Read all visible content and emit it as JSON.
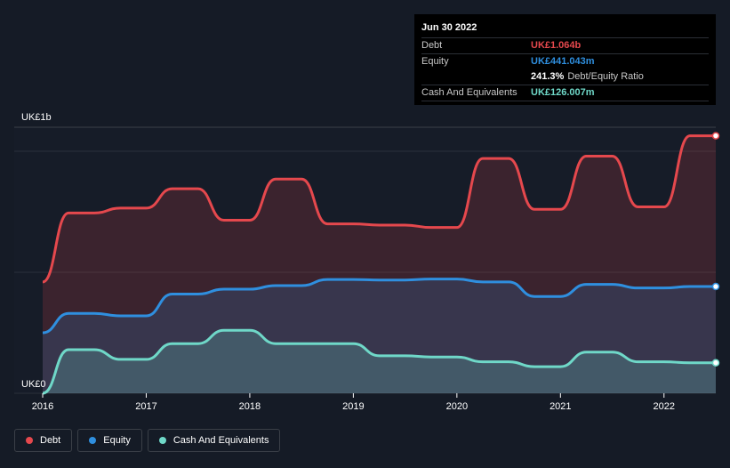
{
  "tooltip": {
    "date": "Jun 30 2022",
    "debt_label": "Debt",
    "debt_value": "UK£1.064b",
    "equity_label": "Equity",
    "equity_value": "UK£441.043m",
    "ratio_value": "241.3%",
    "ratio_label": "Debt/Equity Ratio",
    "cash_label": "Cash And Equivalents",
    "cash_value": "UK£126.007m"
  },
  "legend": [
    {
      "label": "Debt",
      "color": "#e5484d"
    },
    {
      "label": "Equity",
      "color": "#2f8fdf"
    },
    {
      "label": "Cash And Equivalents",
      "color": "#6fd8c8"
    }
  ],
  "chart_data": {
    "type": "area",
    "y_top_label": "UK£1b",
    "y_bottom_label": "UK£0",
    "ylim": [
      0,
      1.1
    ],
    "xlim": [
      2016.0,
      2022.5
    ],
    "x_ticks": [
      "2016",
      "2017",
      "2018",
      "2019",
      "2020",
      "2021",
      "2022"
    ],
    "series": [
      {
        "name": "Debt",
        "color": "#e5484d",
        "fill": "rgba(229,72,77,0.18)",
        "points": [
          [
            2016.0,
            0.46
          ],
          [
            2016.25,
            0.745
          ],
          [
            2016.5,
            0.745
          ],
          [
            2016.75,
            0.765
          ],
          [
            2017.0,
            0.765
          ],
          [
            2017.25,
            0.845
          ],
          [
            2017.5,
            0.845
          ],
          [
            2017.75,
            0.715
          ],
          [
            2018.0,
            0.715
          ],
          [
            2018.25,
            0.885
          ],
          [
            2018.5,
            0.885
          ],
          [
            2018.75,
            0.7
          ],
          [
            2019.0,
            0.7
          ],
          [
            2019.25,
            0.695
          ],
          [
            2019.5,
            0.695
          ],
          [
            2019.75,
            0.685
          ],
          [
            2020.0,
            0.685
          ],
          [
            2020.25,
            0.97
          ],
          [
            2020.5,
            0.97
          ],
          [
            2020.75,
            0.76
          ],
          [
            2021.0,
            0.76
          ],
          [
            2021.25,
            0.98
          ],
          [
            2021.5,
            0.98
          ],
          [
            2021.75,
            0.77
          ],
          [
            2022.0,
            0.77
          ],
          [
            2022.25,
            1.064
          ],
          [
            2022.5,
            1.064
          ]
        ]
      },
      {
        "name": "Equity",
        "color": "#2f8fdf",
        "fill": "rgba(47,143,223,0.18)",
        "points": [
          [
            2016.0,
            0.25
          ],
          [
            2016.25,
            0.33
          ],
          [
            2016.5,
            0.33
          ],
          [
            2016.75,
            0.32
          ],
          [
            2017.0,
            0.32
          ],
          [
            2017.25,
            0.41
          ],
          [
            2017.5,
            0.41
          ],
          [
            2017.75,
            0.43
          ],
          [
            2018.0,
            0.43
          ],
          [
            2018.25,
            0.445
          ],
          [
            2018.5,
            0.445
          ],
          [
            2018.75,
            0.47
          ],
          [
            2019.0,
            0.47
          ],
          [
            2019.25,
            0.468
          ],
          [
            2019.5,
            0.468
          ],
          [
            2019.75,
            0.472
          ],
          [
            2020.0,
            0.472
          ],
          [
            2020.25,
            0.46
          ],
          [
            2020.5,
            0.46
          ],
          [
            2020.75,
            0.4
          ],
          [
            2021.0,
            0.4
          ],
          [
            2021.25,
            0.45
          ],
          [
            2021.5,
            0.45
          ],
          [
            2021.75,
            0.435
          ],
          [
            2022.0,
            0.435
          ],
          [
            2022.25,
            0.441
          ],
          [
            2022.5,
            0.441
          ]
        ]
      },
      {
        "name": "Cash And Equivalents",
        "color": "#6fd8c8",
        "fill": "rgba(111,216,200,0.22)",
        "points": [
          [
            2016.0,
            0.0
          ],
          [
            2016.25,
            0.18
          ],
          [
            2016.5,
            0.18
          ],
          [
            2016.75,
            0.14
          ],
          [
            2017.0,
            0.14
          ],
          [
            2017.25,
            0.205
          ],
          [
            2017.5,
            0.205
          ],
          [
            2017.75,
            0.26
          ],
          [
            2018.0,
            0.26
          ],
          [
            2018.25,
            0.205
          ],
          [
            2018.5,
            0.205
          ],
          [
            2018.75,
            0.205
          ],
          [
            2019.0,
            0.205
          ],
          [
            2019.25,
            0.155
          ],
          [
            2019.5,
            0.155
          ],
          [
            2019.75,
            0.15
          ],
          [
            2020.0,
            0.15
          ],
          [
            2020.25,
            0.13
          ],
          [
            2020.5,
            0.13
          ],
          [
            2020.75,
            0.11
          ],
          [
            2021.0,
            0.11
          ],
          [
            2021.25,
            0.17
          ],
          [
            2021.5,
            0.17
          ],
          [
            2021.75,
            0.13
          ],
          [
            2022.0,
            0.13
          ],
          [
            2022.25,
            0.126
          ],
          [
            2022.5,
            0.126
          ]
        ]
      }
    ]
  }
}
